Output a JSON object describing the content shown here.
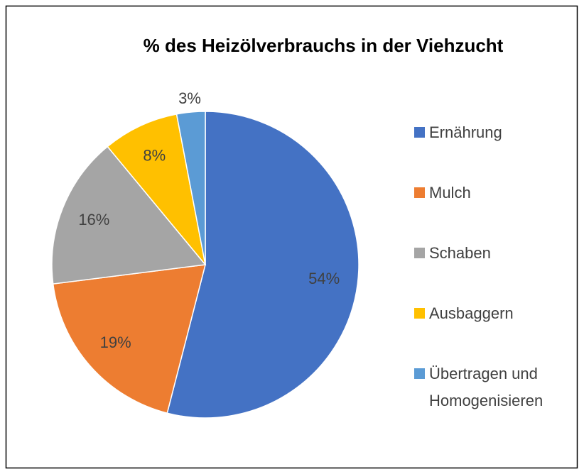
{
  "chart_data": {
    "type": "pie",
    "title": "% des Heizölverbrauchs in der Viehzucht",
    "categories": [
      "Ernährung",
      "Mulch",
      "Schaben",
      "Ausbaggern",
      "Übertragen und Homogenisieren"
    ],
    "values": [
      54,
      19,
      16,
      8,
      3
    ],
    "value_labels": [
      "54%",
      "19%",
      "16%",
      "8%",
      "3%"
    ],
    "colors": [
      "#4472c4",
      "#ed7d31",
      "#a5a5a5",
      "#ffc000",
      "#5b9bd5"
    ],
    "legend": "right"
  }
}
